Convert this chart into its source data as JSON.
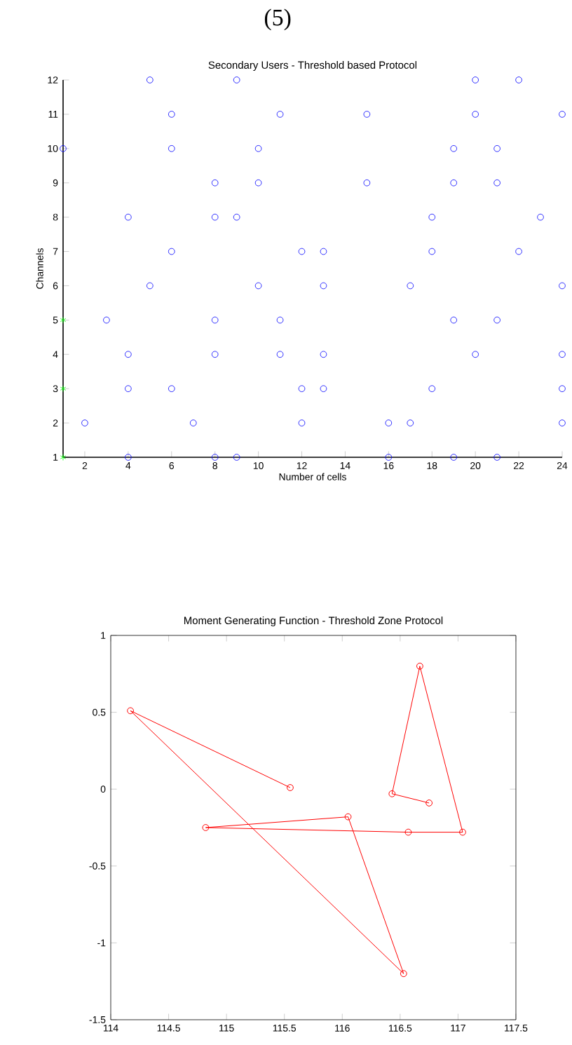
{
  "chart_data": [
    {
      "type": "scatter",
      "title": "Secondary Users -  Threshold based Protocol",
      "xlabel": "Number of cells",
      "ylabel": "Channels",
      "annotations": [
        "(5)"
      ],
      "xlim": [
        1,
        24
      ],
      "xticks": [
        2,
        4,
        6,
        8,
        10,
        12,
        14,
        16,
        18,
        20,
        22,
        24
      ],
      "ylim": [
        1,
        12
      ],
      "yticks": [
        1,
        2,
        3,
        4,
        5,
        6,
        7,
        8,
        9,
        10,
        11,
        12
      ],
      "series": [
        {
          "color": "#0000ff",
          "marker": "circle",
          "x": [
            5,
            9,
            20,
            22,
            6,
            11,
            15,
            20,
            24,
            1,
            6,
            10,
            19,
            21,
            8,
            10,
            15,
            19,
            21,
            4,
            8,
            9,
            18,
            23,
            6,
            12,
            13,
            18,
            22,
            5,
            10,
            13,
            17,
            24,
            3,
            8,
            11,
            19,
            21,
            4,
            8,
            11,
            13,
            20,
            24,
            4,
            6,
            12,
            13,
            18,
            24,
            2,
            7,
            12,
            16,
            17,
            24,
            4,
            8,
            9,
            16,
            19,
            21
          ],
          "values": [
            12,
            12,
            12,
            12,
            11,
            11,
            11,
            11,
            11,
            10,
            10,
            10,
            10,
            10,
            9,
            9,
            9,
            9,
            9,
            8,
            8,
            8,
            8,
            8,
            7,
            7,
            7,
            7,
            7,
            6,
            6,
            6,
            6,
            6,
            5,
            5,
            5,
            5,
            5,
            4,
            4,
            4,
            4,
            4,
            4,
            3,
            3,
            3,
            3,
            3,
            3,
            2,
            2,
            2,
            2,
            2,
            2,
            1,
            1,
            1,
            1,
            1,
            1
          ]
        },
        {
          "color": "#00ff00",
          "marker": "cross",
          "x": [
            1,
            1,
            1
          ],
          "values": [
            1,
            3,
            5
          ]
        }
      ]
    },
    {
      "type": "line",
      "title": "Moment Generating Function - Threshold Zone Protocol",
      "xlim": [
        114,
        117.5
      ],
      "xticks": [
        114,
        114.5,
        115,
        115.5,
        116,
        116.5,
        117,
        117.5
      ],
      "ylim": [
        -1.5,
        1
      ],
      "yticks": [
        -1.5,
        -1,
        -0.5,
        0,
        0.5,
        1
      ],
      "marker": "circle",
      "line_style": "solid",
      "series": [
        {
          "color": "#ff0000",
          "x": [
            115.55,
            114.17,
            116.53,
            116.05,
            114.82,
            116.57,
            117.04,
            116.67,
            116.43,
            116.75
          ],
          "values": [
            0.01,
            0.51,
            -1.2,
            -0.18,
            -0.25,
            -0.28,
            -0.28,
            0.8,
            -0.03,
            -0.09
          ]
        }
      ]
    }
  ]
}
